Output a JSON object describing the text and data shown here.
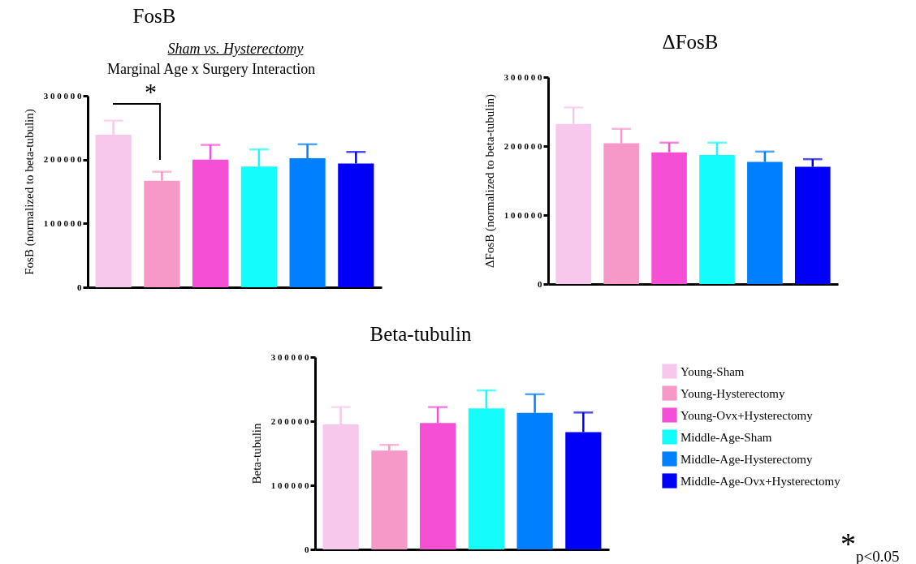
{
  "chart_data": [
    {
      "type": "bar",
      "title": "FosB",
      "subtitle": "Sham vs. Hysterectomy",
      "ylabel": "FosB (normalized to beta-tubulin)",
      "categories": [
        null,
        null,
        null,
        null,
        null,
        null
      ],
      "ylim": [
        0,
        300000
      ],
      "yticks": [
        0,
        100000,
        200000,
        300000
      ],
      "grid": false,
      "legend": false,
      "annotations": [
        "Marginal Age x Surgery Interaction",
        "*"
      ],
      "values": [
        239000,
        167000,
        200000,
        189000,
        202000,
        194000
      ],
      "colors": [
        "#f8c8ec",
        "#f799c8",
        "#f54fd6",
        "#14fdfc",
        "#0080ff",
        "#0000f8"
      ],
      "errors": [
        [
          239000,
          261000
        ],
        [
          167000,
          181000
        ],
        [
          200000,
          223000
        ],
        [
          189000,
          216000
        ],
        [
          202000,
          224000
        ],
        [
          194000,
          212000
        ]
      ]
    },
    {
      "type": "bar",
      "title": "ΔFosB",
      "ylabel": "ΔFosB (normalized to beta-tubulin)",
      "categories": [
        null,
        null,
        null,
        null,
        null,
        null
      ],
      "ylim": [
        0,
        300000
      ],
      "yticks": [
        0,
        100000,
        200000,
        300000
      ],
      "grid": false,
      "legend": false,
      "values": [
        232000,
        204000,
        191000,
        187000,
        177000,
        170000
      ],
      "colors": [
        "#f8c8ec",
        "#f799c8",
        "#f54fd6",
        "#14fdfc",
        "#0080ff",
        "#0000f8"
      ],
      "errors": [
        [
          232000,
          256000
        ],
        [
          204000,
          225000
        ],
        [
          191000,
          205000
        ],
        [
          187000,
          205000
        ],
        [
          177000,
          192000
        ],
        [
          170000,
          181000
        ]
      ]
    },
    {
      "type": "bar",
      "title": "Beta-tubulin",
      "ylabel": "Beta-tubulin",
      "categories": [
        null,
        null,
        null,
        null,
        null,
        null
      ],
      "ylim": [
        0,
        300000
      ],
      "yticks": [
        0,
        100000,
        200000,
        300000
      ],
      "grid": false,
      "legend": "right",
      "annotations": [
        "*$_{p<0.05}$"
      ],
      "series": [
        {
          "name": "Young-Sham",
          "color": "#f8c8ec",
          "values": [
            195000,
            null,
            null,
            null,
            null,
            null
          ],
          "errors": [
            [
              195000,
              222000
            ],
            null,
            null,
            null,
            null,
            null
          ]
        },
        {
          "name": "Young-Hysterectomy",
          "color": "#f799c8",
          "values": [
            null,
            154000,
            null,
            null,
            null,
            null
          ],
          "errors": [
            null,
            [
              154000,
              163000
            ],
            null,
            null,
            null,
            null
          ]
        },
        {
          "name": "Young-Ovx+Hysterectomy",
          "color": "#f54fd6",
          "values": [
            null,
            null,
            197000,
            null,
            null,
            null
          ],
          "errors": [
            null,
            null,
            [
              197000,
              222000
            ],
            null,
            null,
            null
          ]
        },
        {
          "name": "Middle-Age-Sham",
          "color": "#14fdfc",
          "values": [
            null,
            null,
            null,
            220000,
            null,
            null
          ],
          "errors": [
            null,
            null,
            null,
            [
              220000,
              248000
            ],
            null,
            null
          ]
        },
        {
          "name": "Middle-Age-Hysterectomy",
          "color": "#0080ff",
          "values": [
            null,
            null,
            null,
            null,
            213000,
            null
          ],
          "errors": [
            null,
            null,
            null,
            null,
            [
              213000,
              242000
            ],
            null
          ]
        },
        {
          "name": "Middle-Age-Ovx+Hysterectomy",
          "color": "#0000f8",
          "values": [
            null,
            null,
            null,
            null,
            null,
            183000
          ],
          "errors": [
            null,
            null,
            null,
            null,
            null,
            [
              183000,
              213500
            ]
          ]
        }
      ]
    }
  ]
}
